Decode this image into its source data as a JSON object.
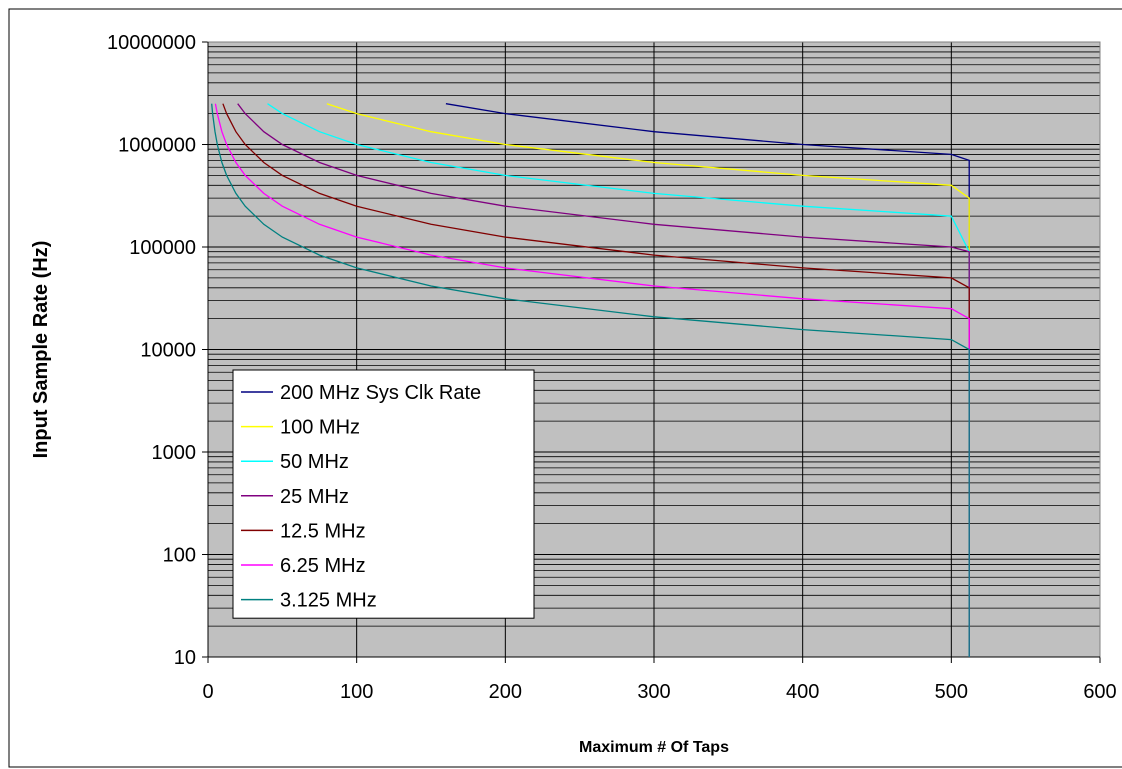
{
  "chart_data": {
    "type": "line",
    "xlabel": "Maximum # Of Taps",
    "ylabel": "Input Sample Rate (Hz)",
    "xlim": [
      0,
      600
    ],
    "ylim": [
      10,
      10000000
    ],
    "y_scale": "log",
    "x_ticks": [
      "0",
      "100",
      "200",
      "300",
      "400",
      "500",
      "600"
    ],
    "y_ticks": [
      "10",
      "100",
      "1000",
      "10000",
      "100000",
      "1000000",
      "10000000"
    ],
    "grid": true,
    "plot_background": "#c0c0c0",
    "legend_position": "lower-left",
    "series": [
      {
        "name": "200 MHz Sys Clk Rate",
        "color": "#000080",
        "x": [
          160,
          200,
          300,
          400,
          500,
          512,
          512
        ],
        "y": [
          2500000,
          2000000,
          1333333,
          1000000,
          800000,
          700000,
          10
        ]
      },
      {
        "name": "100 MHz",
        "color": "#ffff00",
        "x": [
          80,
          100,
          150,
          200,
          300,
          400,
          500,
          512,
          512
        ],
        "y": [
          2500000,
          2000000,
          1333333,
          1000000,
          666667,
          500000,
          400000,
          300000,
          10
        ]
      },
      {
        "name": "50 MHz",
        "color": "#00ffff",
        "x": [
          40,
          50,
          75,
          100,
          150,
          200,
          300,
          400,
          500,
          512,
          512
        ],
        "y": [
          2500000,
          2000000,
          1333333,
          1000000,
          666667,
          500000,
          333333,
          250000,
          200000,
          90000,
          10
        ]
      },
      {
        "name": "25 MHz",
        "color": "#800080",
        "x": [
          20,
          25,
          37.5,
          50,
          75,
          100,
          150,
          200,
          300,
          400,
          500,
          512,
          512
        ],
        "y": [
          2500000,
          2000000,
          1333333,
          1000000,
          666667,
          500000,
          333333,
          250000,
          166667,
          125000,
          100000,
          90000,
          10
        ]
      },
      {
        "name": "12.5 MHz",
        "color": "#800000",
        "x": [
          10,
          12.5,
          18.75,
          25,
          37.5,
          50,
          75,
          100,
          150,
          200,
          300,
          400,
          500,
          512,
          512
        ],
        "y": [
          2500000,
          2000000,
          1333333,
          1000000,
          666667,
          500000,
          333333,
          250000,
          166667,
          125000,
          83333,
          62500,
          50000,
          40000,
          10
        ]
      },
      {
        "name": "6.25 MHz",
        "color": "#ff00ff",
        "x": [
          5,
          6.25,
          9.375,
          12.5,
          18.75,
          25,
          37.5,
          50,
          75,
          100,
          150,
          200,
          300,
          400,
          500,
          512,
          512
        ],
        "y": [
          2500000,
          2000000,
          1333333,
          1000000,
          666667,
          500000,
          333333,
          250000,
          166667,
          125000,
          83333,
          62500,
          41667,
          31250,
          25000,
          20000,
          10
        ]
      },
      {
        "name": "3.125 MHz",
        "color": "#008080",
        "x": [
          2.5,
          3.125,
          4.6875,
          6.25,
          9.375,
          12.5,
          18.75,
          25,
          37.5,
          50,
          75,
          100,
          150,
          200,
          300,
          400,
          500,
          512,
          512
        ],
        "y": [
          2500000,
          2000000,
          1333333,
          1000000,
          666667,
          500000,
          333333,
          250000,
          166667,
          125000,
          83333,
          62500,
          41667,
          31250,
          20833,
          15625,
          12500,
          10000,
          10
        ]
      }
    ]
  }
}
